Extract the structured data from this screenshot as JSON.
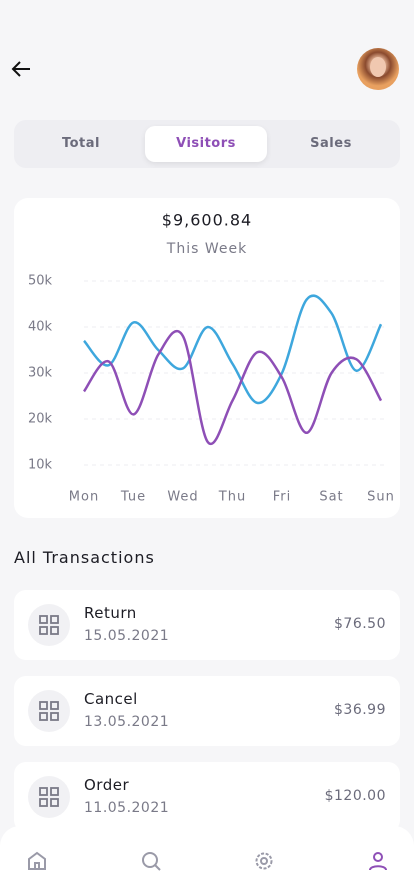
{
  "tabs": {
    "items": [
      "Total",
      "Visitors",
      "Sales"
    ],
    "active": 1
  },
  "chart_data": {
    "type": "line",
    "title": "$9,600.84",
    "subtitle": "This Week",
    "categories": [
      "Mon",
      null,
      "Tue",
      null,
      "Wed",
      null,
      "Thu",
      null,
      "Fri",
      null,
      "Sat",
      null,
      "Sun"
    ],
    "series": [
      {
        "color": "#3ea7dd",
        "values": [
          37000,
          31700,
          41000,
          35000,
          31000,
          40000,
          32000,
          23500,
          30000,
          46000,
          43000,
          30500,
          40600
        ]
      },
      {
        "color": "#8e4fb6",
        "values": [
          26000,
          32500,
          21000,
          34000,
          38000,
          15000,
          24000,
          34500,
          29000,
          17000,
          30000,
          33000,
          24000
        ]
      }
    ],
    "ylim": [
      10000,
      50000
    ],
    "yticks": [
      {
        "value": 50000,
        "label": "50k"
      },
      {
        "value": 40000,
        "label": "40k"
      },
      {
        "value": 30000,
        "label": "30k"
      },
      {
        "value": 20000,
        "label": "20k"
      },
      {
        "value": 10000,
        "label": "10k"
      }
    ],
    "grid": true
  },
  "transactions": {
    "title": "All Transactions",
    "items": [
      {
        "name": "Return",
        "date": "15.05.2021",
        "amount": "$76.50"
      },
      {
        "name": "Cancel",
        "date": "13.05.2021",
        "amount": "$36.99"
      },
      {
        "name": "Order",
        "date": "11.05.2021",
        "amount": "$120.00"
      }
    ]
  },
  "nav": {
    "active": 3
  }
}
